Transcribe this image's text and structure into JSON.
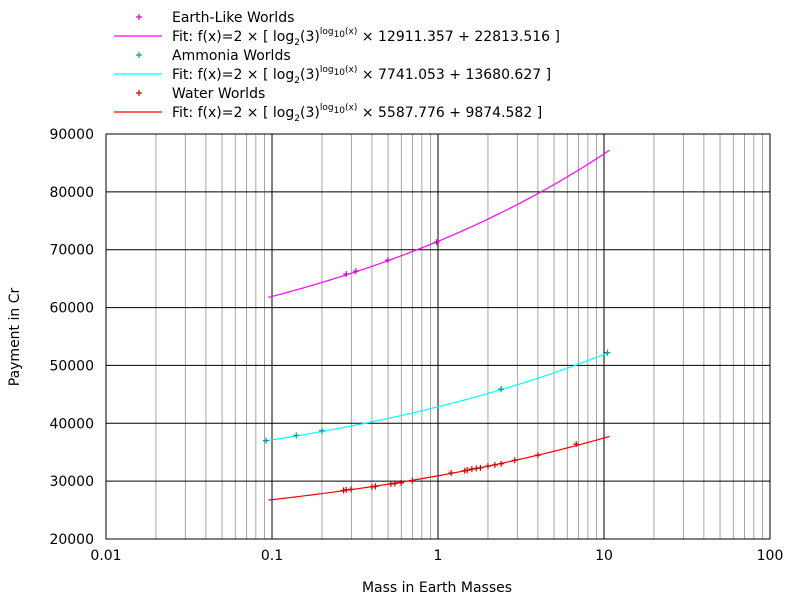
{
  "chart_data": {
    "type": "scatter",
    "title": "",
    "xlabel": "Mass in Earth Masses",
    "ylabel": "Payment in Cr",
    "xscale": "log",
    "xlim": [
      0.01,
      100
    ],
    "ylim": [
      20000,
      90000
    ],
    "x_tick_labels": [
      "0.01",
      "0.1",
      "1",
      "10",
      "100"
    ],
    "y_tick_labels": [
      "20000",
      "30000",
      "40000",
      "50000",
      "60000",
      "70000",
      "80000",
      "90000"
    ],
    "grid": true,
    "legend_position": "top",
    "series": [
      {
        "name": "Earth-Like Worlds",
        "kind": "points",
        "marker": "+",
        "color": "#cc00cc",
        "x": [
          0.28,
          0.32,
          0.5,
          0.98
        ],
        "y": [
          65800,
          66300,
          68200,
          71300
        ]
      },
      {
        "name": "Fit: f(x)=2 × [ log2(3)log10(x) × 12911.357 + 22813.516 ]",
        "kind": "fit",
        "color": "#ff00ff",
        "a": 12911.357,
        "b": 22813.516,
        "x_range": [
          0.095,
          10.8
        ]
      },
      {
        "name": "Ammonia Worlds",
        "kind": "points",
        "marker": "+",
        "color": "#009999",
        "x": [
          0.092,
          0.14,
          0.2,
          2.4,
          10.5
        ],
        "y": [
          37000,
          37900,
          38700,
          45900,
          52200
        ]
      },
      {
        "name": "Fit: f(x)=2 × [ log2(3)log10(x) × 7741.053 + 13680.627 ]",
        "kind": "fit",
        "color": "#00ffff",
        "a": 7741.053,
        "b": 13680.627,
        "x_range": [
          0.092,
          10.8
        ]
      },
      {
        "name": "Water Worlds",
        "kind": "points",
        "marker": "+",
        "color": "#cc0000",
        "x": [
          0.27,
          0.28,
          0.3,
          0.4,
          0.42,
          0.52,
          0.55,
          0.6,
          0.7,
          1.2,
          1.45,
          1.5,
          1.6,
          1.7,
          1.8,
          2.0,
          2.2,
          2.4,
          2.9,
          4.0,
          6.8
        ],
        "y": [
          28400,
          28500,
          28600,
          29000,
          29100,
          29500,
          29600,
          29700,
          30100,
          31400,
          31800,
          31900,
          32100,
          32200,
          32300,
          32600,
          32800,
          33000,
          33600,
          34500,
          36400
        ]
      },
      {
        "name": "Fit: f(x)=2 × [ log2(3)log10(x) × 5587.776 + 9874.582 ]",
        "kind": "fit",
        "color": "#ff0000",
        "a": 5587.776,
        "b": 9874.582,
        "x_range": [
          0.095,
          10.8
        ]
      }
    ]
  },
  "legend": [
    {
      "kind": "points",
      "color": "#cc00cc",
      "label": "Earth-Like Worlds"
    },
    {
      "kind": "fit",
      "color": "#ff00ff",
      "prefix": "Fit: f(x)=2 × [ log",
      "sub1": "2",
      "mid": "(3)",
      "sup": "log",
      "sub2": "10",
      "sup_end": "(x)",
      "suffix": " × 12911.357 + 22813.516 ]"
    },
    {
      "kind": "points",
      "color": "#009999",
      "label": "Ammonia Worlds"
    },
    {
      "kind": "fit",
      "color": "#00ffff",
      "prefix": "Fit: f(x)=2 × [ log",
      "sub1": "2",
      "mid": "(3)",
      "sup": "log",
      "sub2": "10",
      "sup_end": "(x)",
      "suffix": " × 7741.053 + 13680.627 ]"
    },
    {
      "kind": "points",
      "color": "#cc0000",
      "label": "Water Worlds"
    },
    {
      "kind": "fit",
      "color": "#ff0000",
      "prefix": "Fit: f(x)=2 × [ log",
      "sub1": "2",
      "mid": "(3)",
      "sup": "log",
      "sub2": "10",
      "sup_end": "(x)",
      "suffix": " × 5587.776 + 9874.582 ]"
    }
  ]
}
